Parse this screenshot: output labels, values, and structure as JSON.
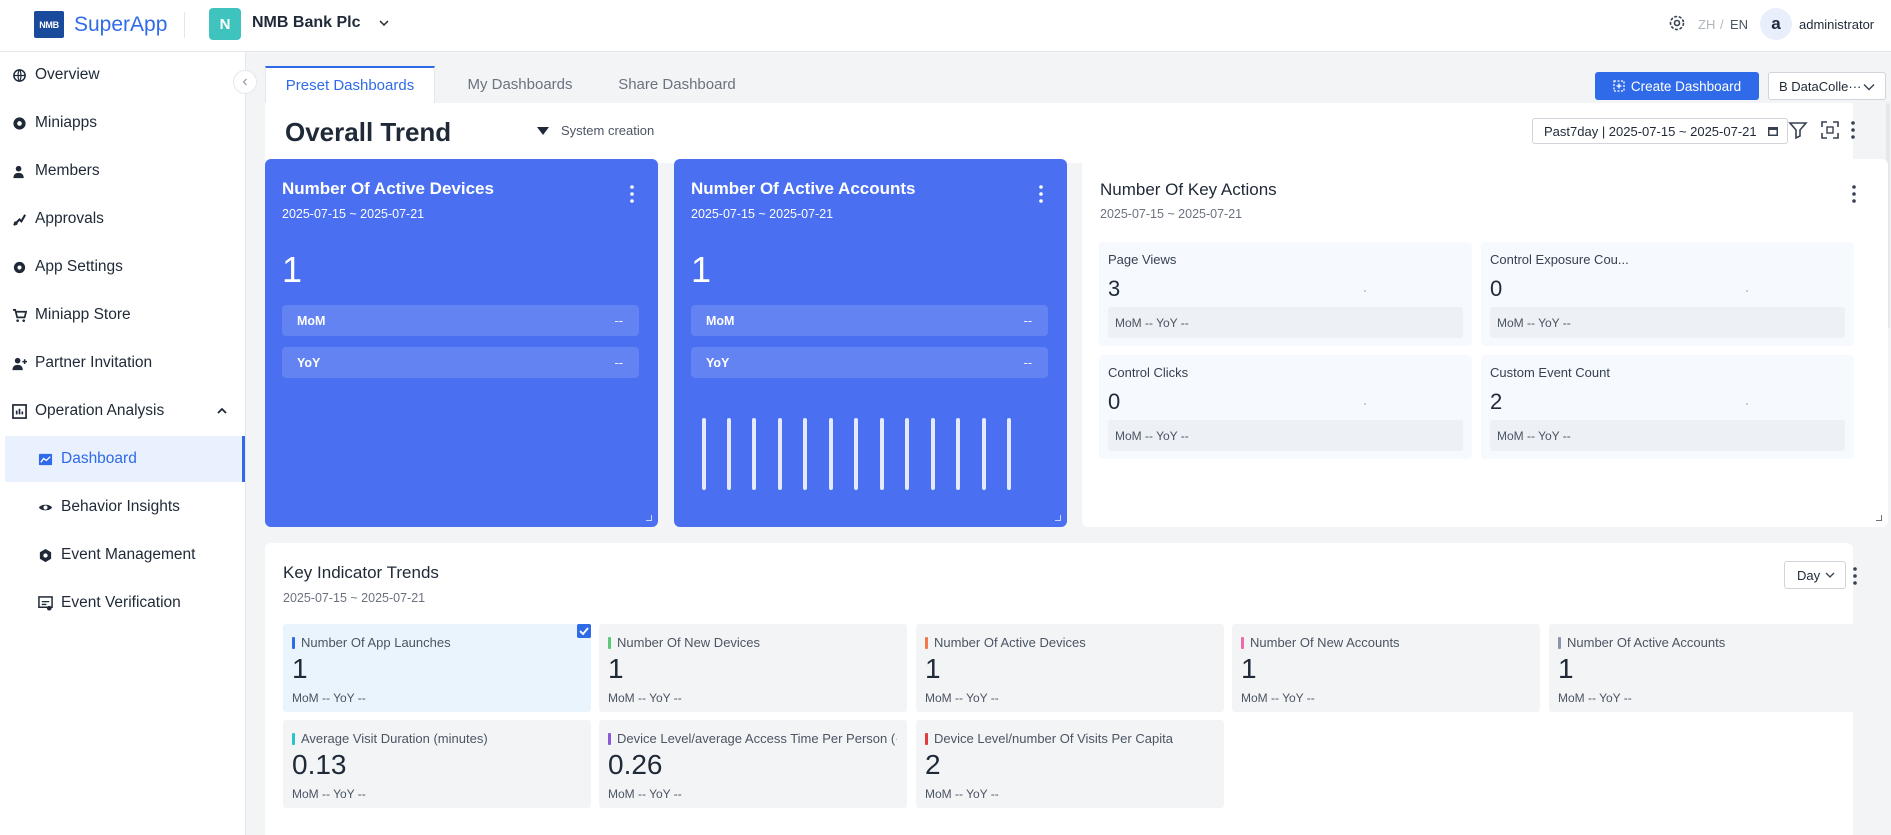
{
  "topbar": {
    "logo_text": "NMB",
    "app_name": "SuperApp",
    "org_initial": "N",
    "org_name": "NMB Bank Plc",
    "lang_zh": "ZH",
    "lang_sep": "/",
    "lang_en": "EN",
    "avatar_initial": "a",
    "user_name": "administrator"
  },
  "sidebar": {
    "items": [
      {
        "label": "Overview",
        "icon": "globe-icon"
      },
      {
        "label": "Miniapps",
        "icon": "aperture-icon"
      },
      {
        "label": "Members",
        "icon": "user-icon"
      },
      {
        "label": "Approvals",
        "icon": "approval-icon"
      },
      {
        "label": "App Settings",
        "icon": "gear-icon"
      },
      {
        "label": "Miniapp Store",
        "icon": "cart-icon"
      },
      {
        "label": "Partner Invitation",
        "icon": "user-plus-icon"
      },
      {
        "label": "Operation Analysis",
        "icon": "analysis-icon"
      }
    ],
    "sub_items": [
      {
        "label": "Dashboard",
        "icon": "dashboard-icon",
        "active": true
      },
      {
        "label": "Behavior Insights",
        "icon": "eye-icon"
      },
      {
        "label": "Event Management",
        "icon": "event-gear-icon"
      },
      {
        "label": "Event Verification",
        "icon": "verify-icon"
      }
    ]
  },
  "tabs": [
    "Preset Dashboards",
    "My Dashboards",
    "Share Dashboard"
  ],
  "toolbar": {
    "create_label": "Create Dashboard",
    "datacollector_value": "B DataColle···"
  },
  "dashboard": {
    "title": "Overall Trend",
    "creation": "System creation",
    "date_range": "Past7day | 2025-07-15 ~ 2025-07-21"
  },
  "active_devices": {
    "title": "Number Of Active Devices",
    "date": "2025-07-15 ~ 2025-07-21",
    "value": "1",
    "mom_label": "MoM",
    "mom_value": "--",
    "yoy_label": "YoY",
    "yoy_value": "--"
  },
  "active_accounts": {
    "title": "Number Of Active Accounts",
    "date": "2025-07-15 ~ 2025-07-21",
    "value": "1",
    "mom_label": "MoM",
    "mom_value": "--",
    "yoy_label": "YoY",
    "yoy_value": "--"
  },
  "key_actions": {
    "title": "Number Of Key Actions",
    "date": "2025-07-15 ~ 2025-07-21",
    "cells": [
      {
        "label": "Page Views",
        "value": "3",
        "footer": "MoM --    YoY --"
      },
      {
        "label": "Control Exposure Cou...",
        "value": "0",
        "footer": "MoM --    YoY --"
      },
      {
        "label": "Control Clicks",
        "value": "0",
        "footer": "MoM --    YoY --"
      },
      {
        "label": "Custom Event Count",
        "value": "2",
        "footer": "MoM --    YoY --"
      }
    ]
  },
  "key_indicators": {
    "title": "Key Indicator Trends",
    "date": "2025-07-15 ~ 2025-07-21",
    "granularity": "Day",
    "tiles": [
      {
        "label": "Number Of App Launches",
        "value": "1",
        "footer": "MoM  -- YoY  --",
        "color": "#2f6be8"
      },
      {
        "label": "Number Of New Devices",
        "value": "1",
        "footer": "MoM  -- YoY  --",
        "color": "#5cc97a"
      },
      {
        "label": "Number Of Active Devices",
        "value": "1",
        "footer": "MoM  -- YoY  --",
        "color": "#f07a4a"
      },
      {
        "label": "Number Of New Accounts",
        "value": "1",
        "footer": "MoM  -- YoY  --",
        "color": "#ee6aa8"
      },
      {
        "label": "Number Of Active Accounts",
        "value": "1",
        "footer": "MoM  -- YoY  --",
        "color": "#8e95a8"
      },
      {
        "label": "Average Visit Duration (minutes)",
        "value": "0.13",
        "footer": "MoM  -- YoY  --",
        "color": "#2bc4c4"
      },
      {
        "label": "Device Level/average Access Time Per Person (···",
        "value": "0.26",
        "footer": "MoM  -- YoY  --",
        "color": "#8a5ad6"
      },
      {
        "label": "Device Level/number Of Visits Per Capita",
        "value": "2",
        "footer": "MoM  -- YoY  --",
        "color": "#e23b3b"
      }
    ]
  }
}
